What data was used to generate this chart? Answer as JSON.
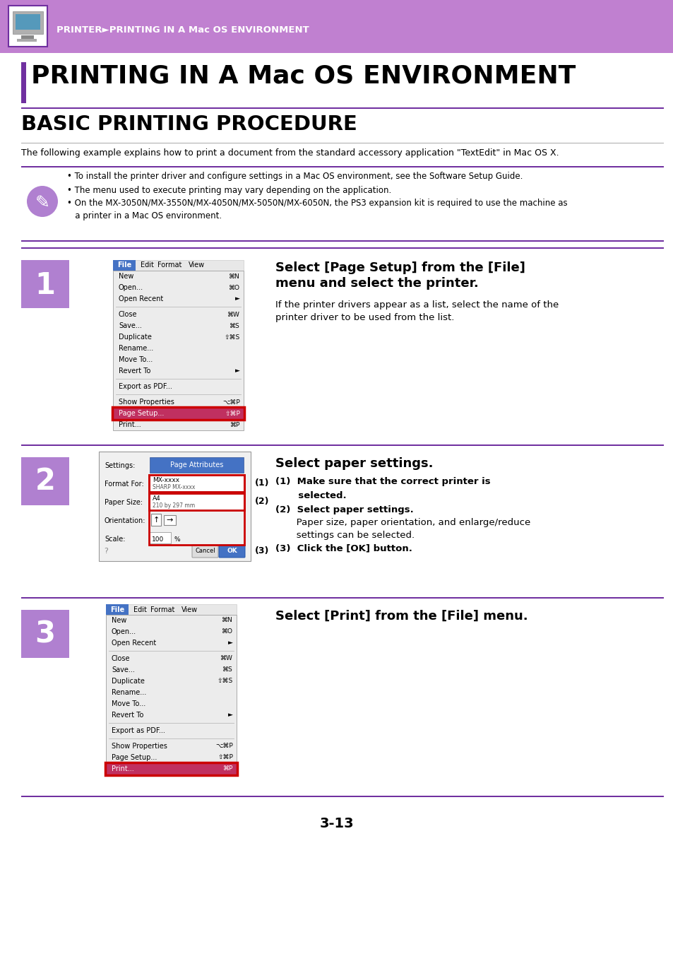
{
  "header_bg": "#c080d0",
  "header_text": "PRINTER►PRINTING IN A Mac OS ENVIRONMENT",
  "header_text_color": "#ffffff",
  "title_text": "PRINTING IN A Mac OS ENVIRONMENT",
  "title_color": "#000000",
  "title_bar_color": "#7030a0",
  "section_title": "BASIC PRINTING PROCEDURE",
  "intro_text": "The following example explains how to print a document from the standard accessory application \"TextEdit\" in Mac OS X.",
  "note_bullet1": "• To install the printer driver and configure settings in a Mac OS environment, see the Software Setup Guide.",
  "note_bullet2": "• The menu used to execute printing may vary depending on the application.",
  "note_bullet3a": "• On the MX-3050N/MX-3550N/MX-4050N/MX-5050N/MX-6050N, the PS3 expansion kit is required to use the machine as",
  "note_bullet3b": "   a printer in a Mac OS environment.",
  "step1_num": "1",
  "step1_title_line1": "Select [Page Setup] from the [File]",
  "step1_title_line2": "menu and select the printer.",
  "step1_desc_line1": "If the printer drivers appear as a list, select the name of the",
  "step1_desc_line2": "printer driver to be used from the list.",
  "step2_num": "2",
  "step2_title": "Select paper settings.",
  "step2_item1_bold": "(1)  Make sure that the correct printer is",
  "step2_item1_cont": "       selected.",
  "step2_item2_bold": "(2)  Select paper settings.",
  "step2_item2_desc": "       Paper size, paper orientation, and enlarge/reduce",
  "step2_item2_desc2": "       settings can be selected.",
  "step2_item3_bold": "(3)  Click the [OK] button.",
  "step3_num": "3",
  "step3_title": "Select [Print] from the [File] menu.",
  "page_num": "3-13",
  "purple": "#7030a0",
  "light_purple": "#b080d0",
  "header_purple": "#c080d0",
  "blue_menu": "#4472c4",
  "red_highlight": "#cc0000",
  "bg_color": "#ffffff",
  "menu1_items": [
    [
      "New",
      "⌘N",
      false
    ],
    [
      "Open...",
      "⌘O",
      false
    ],
    [
      "Open Recent",
      "►",
      false
    ],
    [
      null,
      null,
      false
    ],
    [
      "Close",
      "⌘W",
      false
    ],
    [
      "Save...",
      "⌘S",
      false
    ],
    [
      "Duplicate",
      "⇧⌘S",
      false
    ],
    [
      "Rename...",
      "",
      false
    ],
    [
      "Move To...",
      "",
      false
    ],
    [
      "Revert To",
      "►",
      false
    ],
    [
      null,
      null,
      false
    ],
    [
      "Export as PDF...",
      "",
      false
    ],
    [
      null,
      null,
      false
    ],
    [
      "Show Properties",
      "⌥⌘P",
      false
    ],
    [
      "Page Setup...",
      "⇧⌘P",
      true
    ],
    [
      "Print...",
      "⌘P",
      false
    ]
  ],
  "menu3_items": [
    [
      "New",
      "⌘N",
      false
    ],
    [
      "Open...",
      "⌘O",
      false
    ],
    [
      "Open Recent",
      "►",
      false
    ],
    [
      null,
      null,
      false
    ],
    [
      "Close",
      "⌘W",
      false
    ],
    [
      "Save...",
      "⌘S",
      false
    ],
    [
      "Duplicate",
      "⇧⌘S",
      false
    ],
    [
      "Rename...",
      "",
      false
    ],
    [
      "Move To...",
      "",
      false
    ],
    [
      "Revert To",
      "►",
      false
    ],
    [
      null,
      null,
      false
    ],
    [
      "Export as PDF...",
      "",
      false
    ],
    [
      null,
      null,
      false
    ],
    [
      "Show Properties",
      "⌥⌘P",
      false
    ],
    [
      "Page Setup...",
      "⇧⌘P",
      false
    ],
    [
      "Print...",
      "⌘P",
      true
    ]
  ]
}
